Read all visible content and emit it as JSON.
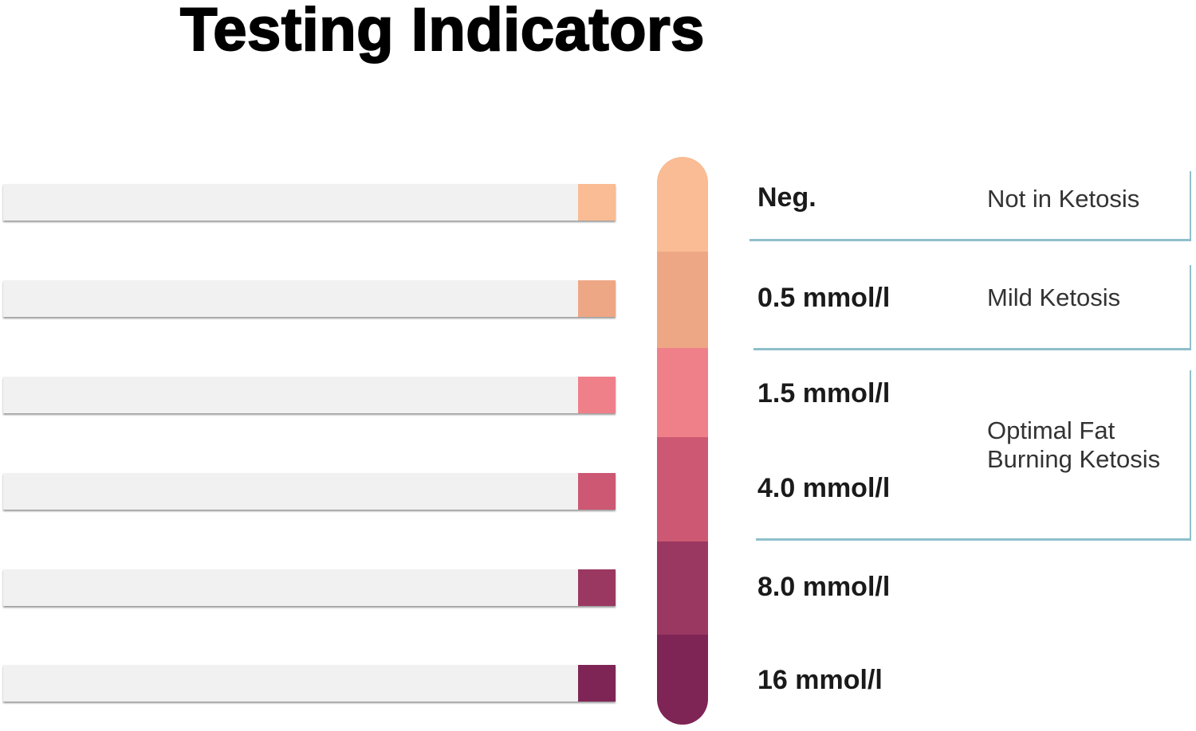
{
  "title": "Testing Indicators",
  "levels": [
    {
      "label": "Neg.",
      "color": "#f9bc94"
    },
    {
      "label": "0.5 mmol/l",
      "color": "#eea784"
    },
    {
      "label": "1.5 mmol/l",
      "color": "#ef808a"
    },
    {
      "label": "4.0 mmol/l",
      "color": "#cc5873"
    },
    {
      "label": "8.0 mmol/l",
      "color": "#9b3862"
    },
    {
      "label": "16 mmol/l",
      "color": "#7e2556"
    }
  ],
  "ranges": [
    {
      "label": "Not in Ketosis"
    },
    {
      "label": "Mild Ketosis"
    },
    {
      "label_line1": "Optimal Fat",
      "label_line2": "Burning Ketosis"
    }
  ],
  "colors": {
    "bracket": "#8fbfcc",
    "strip": "#f1f1f1"
  }
}
